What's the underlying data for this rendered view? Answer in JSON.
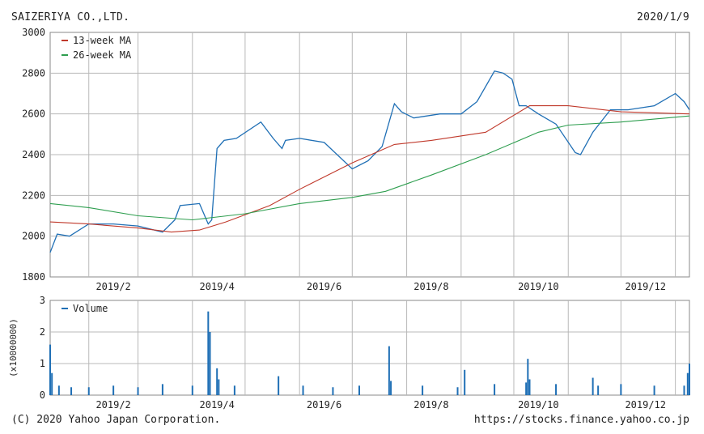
{
  "header": {
    "company": "SAIZERIYA CO.,LTD.",
    "date": "2020/1/9"
  },
  "footer": {
    "copyright": "(C) 2020 Yahoo Japan Corporation.",
    "url": "https://stocks.finance.yahoo.co.jp"
  },
  "colors": {
    "price": "#1f6fb5",
    "ma13": "#c0392b",
    "ma26": "#2e9e4f",
    "volume": "#1f6fb5",
    "grid": "#b8b8b8"
  },
  "chart_data": [
    {
      "type": "line",
      "title": "",
      "ylim": [
        1800,
        3000
      ],
      "y_ticks": [
        1800,
        2000,
        2200,
        2400,
        2600,
        2800,
        3000
      ],
      "x_ticks": [
        "2019/2",
        "2019/4",
        "2019/6",
        "2019/8",
        "2019/10",
        "2019/12"
      ],
      "legend_position": "top-left",
      "series": [
        {
          "name": "",
          "key": "price",
          "x": [
            "2019/1/10",
            "2019/1/14",
            "2019/1/21",
            "2019/2/1",
            "2019/2/15",
            "2019/3/1",
            "2019/3/15",
            "2019/3/22",
            "2019/3/25",
            "2019/4/5",
            "2019/4/10",
            "2019/4/12",
            "2019/4/15",
            "2019/4/19",
            "2019/4/26",
            "2019/5/10",
            "2019/5/17",
            "2019/5/22",
            "2019/5/24",
            "2019/6/1",
            "2019/6/15",
            "2019/7/1",
            "2019/7/10",
            "2019/7/18",
            "2019/7/25",
            "2019/7/29",
            "2019/8/5",
            "2019/8/20",
            "2019/9/1",
            "2019/9/10",
            "2019/9/20",
            "2019/9/25",
            "2019/9/30",
            "2019/10/4",
            "2019/10/8",
            "2019/10/15",
            "2019/10/25",
            "2019/11/5",
            "2019/11/8",
            "2019/11/15",
            "2019/11/25",
            "2019/12/5",
            "2019/12/20",
            "2020/1/1",
            "2020/1/6",
            "2020/1/9"
          ],
          "values": [
            1920,
            2010,
            2000,
            2060,
            2060,
            2050,
            2020,
            2080,
            2150,
            2160,
            2060,
            2080,
            2430,
            2470,
            2480,
            2560,
            2480,
            2430,
            2470,
            2480,
            2460,
            2330,
            2370,
            2440,
            2650,
            2610,
            2580,
            2600,
            2600,
            2660,
            2810,
            2800,
            2770,
            2640,
            2640,
            2600,
            2550,
            2410,
            2400,
            2510,
            2620,
            2620,
            2640,
            2700,
            2660,
            2620
          ]
        },
        {
          "name": "13-week MA",
          "key": "ma13",
          "x": [
            "2019/1/10",
            "2019/2/1",
            "2019/3/1",
            "2019/3/20",
            "2019/4/5",
            "2019/4/20",
            "2019/5/15",
            "2019/6/1",
            "2019/7/1",
            "2019/7/25",
            "2019/8/15",
            "2019/9/15",
            "2019/10/10",
            "2019/11/1",
            "2019/12/1",
            "2020/1/9"
          ],
          "values": [
            2070,
            2060,
            2040,
            2020,
            2030,
            2070,
            2150,
            2230,
            2360,
            2450,
            2470,
            2510,
            2640,
            2640,
            2610,
            2600
          ]
        },
        {
          "name": "26-week MA",
          "key": "ma26",
          "x": [
            "2019/1/10",
            "2019/2/1",
            "2019/3/1",
            "2019/4/1",
            "2019/5/1",
            "2019/6/1",
            "2019/7/1",
            "2019/7/20",
            "2019/8/15",
            "2019/9/15",
            "2019/10/15",
            "2019/11/1",
            "2019/12/1",
            "2020/1/9"
          ],
          "values": [
            2160,
            2140,
            2100,
            2080,
            2110,
            2160,
            2190,
            2220,
            2300,
            2400,
            2510,
            2545,
            2560,
            2590
          ]
        }
      ]
    },
    {
      "type": "bar",
      "title": "",
      "ylabel": "(x10000000)",
      "ylim": [
        0,
        3
      ],
      "y_ticks": [
        0,
        1,
        2,
        3
      ],
      "x_ticks": [
        "2019/2",
        "2019/4",
        "2019/6",
        "2019/8",
        "2019/10",
        "2019/12"
      ],
      "legend_position": "top-left",
      "series": [
        {
          "name": "Volume",
          "key": "volume",
          "x": [
            "2019/1/10",
            "2019/1/11",
            "2019/1/15",
            "2019/1/22",
            "2019/2/1",
            "2019/2/15",
            "2019/3/1",
            "2019/3/15",
            "2019/4/1",
            "2019/4/10",
            "2019/4/11",
            "2019/4/15",
            "2019/4/16",
            "2019/4/25",
            "2019/5/20",
            "2019/6/3",
            "2019/6/20",
            "2019/7/5",
            "2019/7/22",
            "2019/7/23",
            "2019/8/10",
            "2019/8/30",
            "2019/9/3",
            "2019/9/20",
            "2019/10/8",
            "2019/10/9",
            "2019/10/10",
            "2019/10/25",
            "2019/11/15",
            "2019/11/18",
            "2019/12/1",
            "2019/12/20",
            "2020/1/6",
            "2020/1/8",
            "2020/1/9"
          ],
          "values": [
            1.6,
            0.7,
            0.3,
            0.25,
            0.25,
            0.3,
            0.25,
            0.35,
            0.3,
            2.65,
            2.0,
            0.85,
            0.5,
            0.3,
            0.6,
            0.3,
            0.25,
            0.3,
            1.55,
            0.45,
            0.3,
            0.25,
            0.8,
            0.35,
            0.4,
            1.15,
            0.5,
            0.35,
            0.55,
            0.3,
            0.35,
            0.3,
            0.3,
            0.7,
            1.0
          ]
        }
      ]
    }
  ]
}
